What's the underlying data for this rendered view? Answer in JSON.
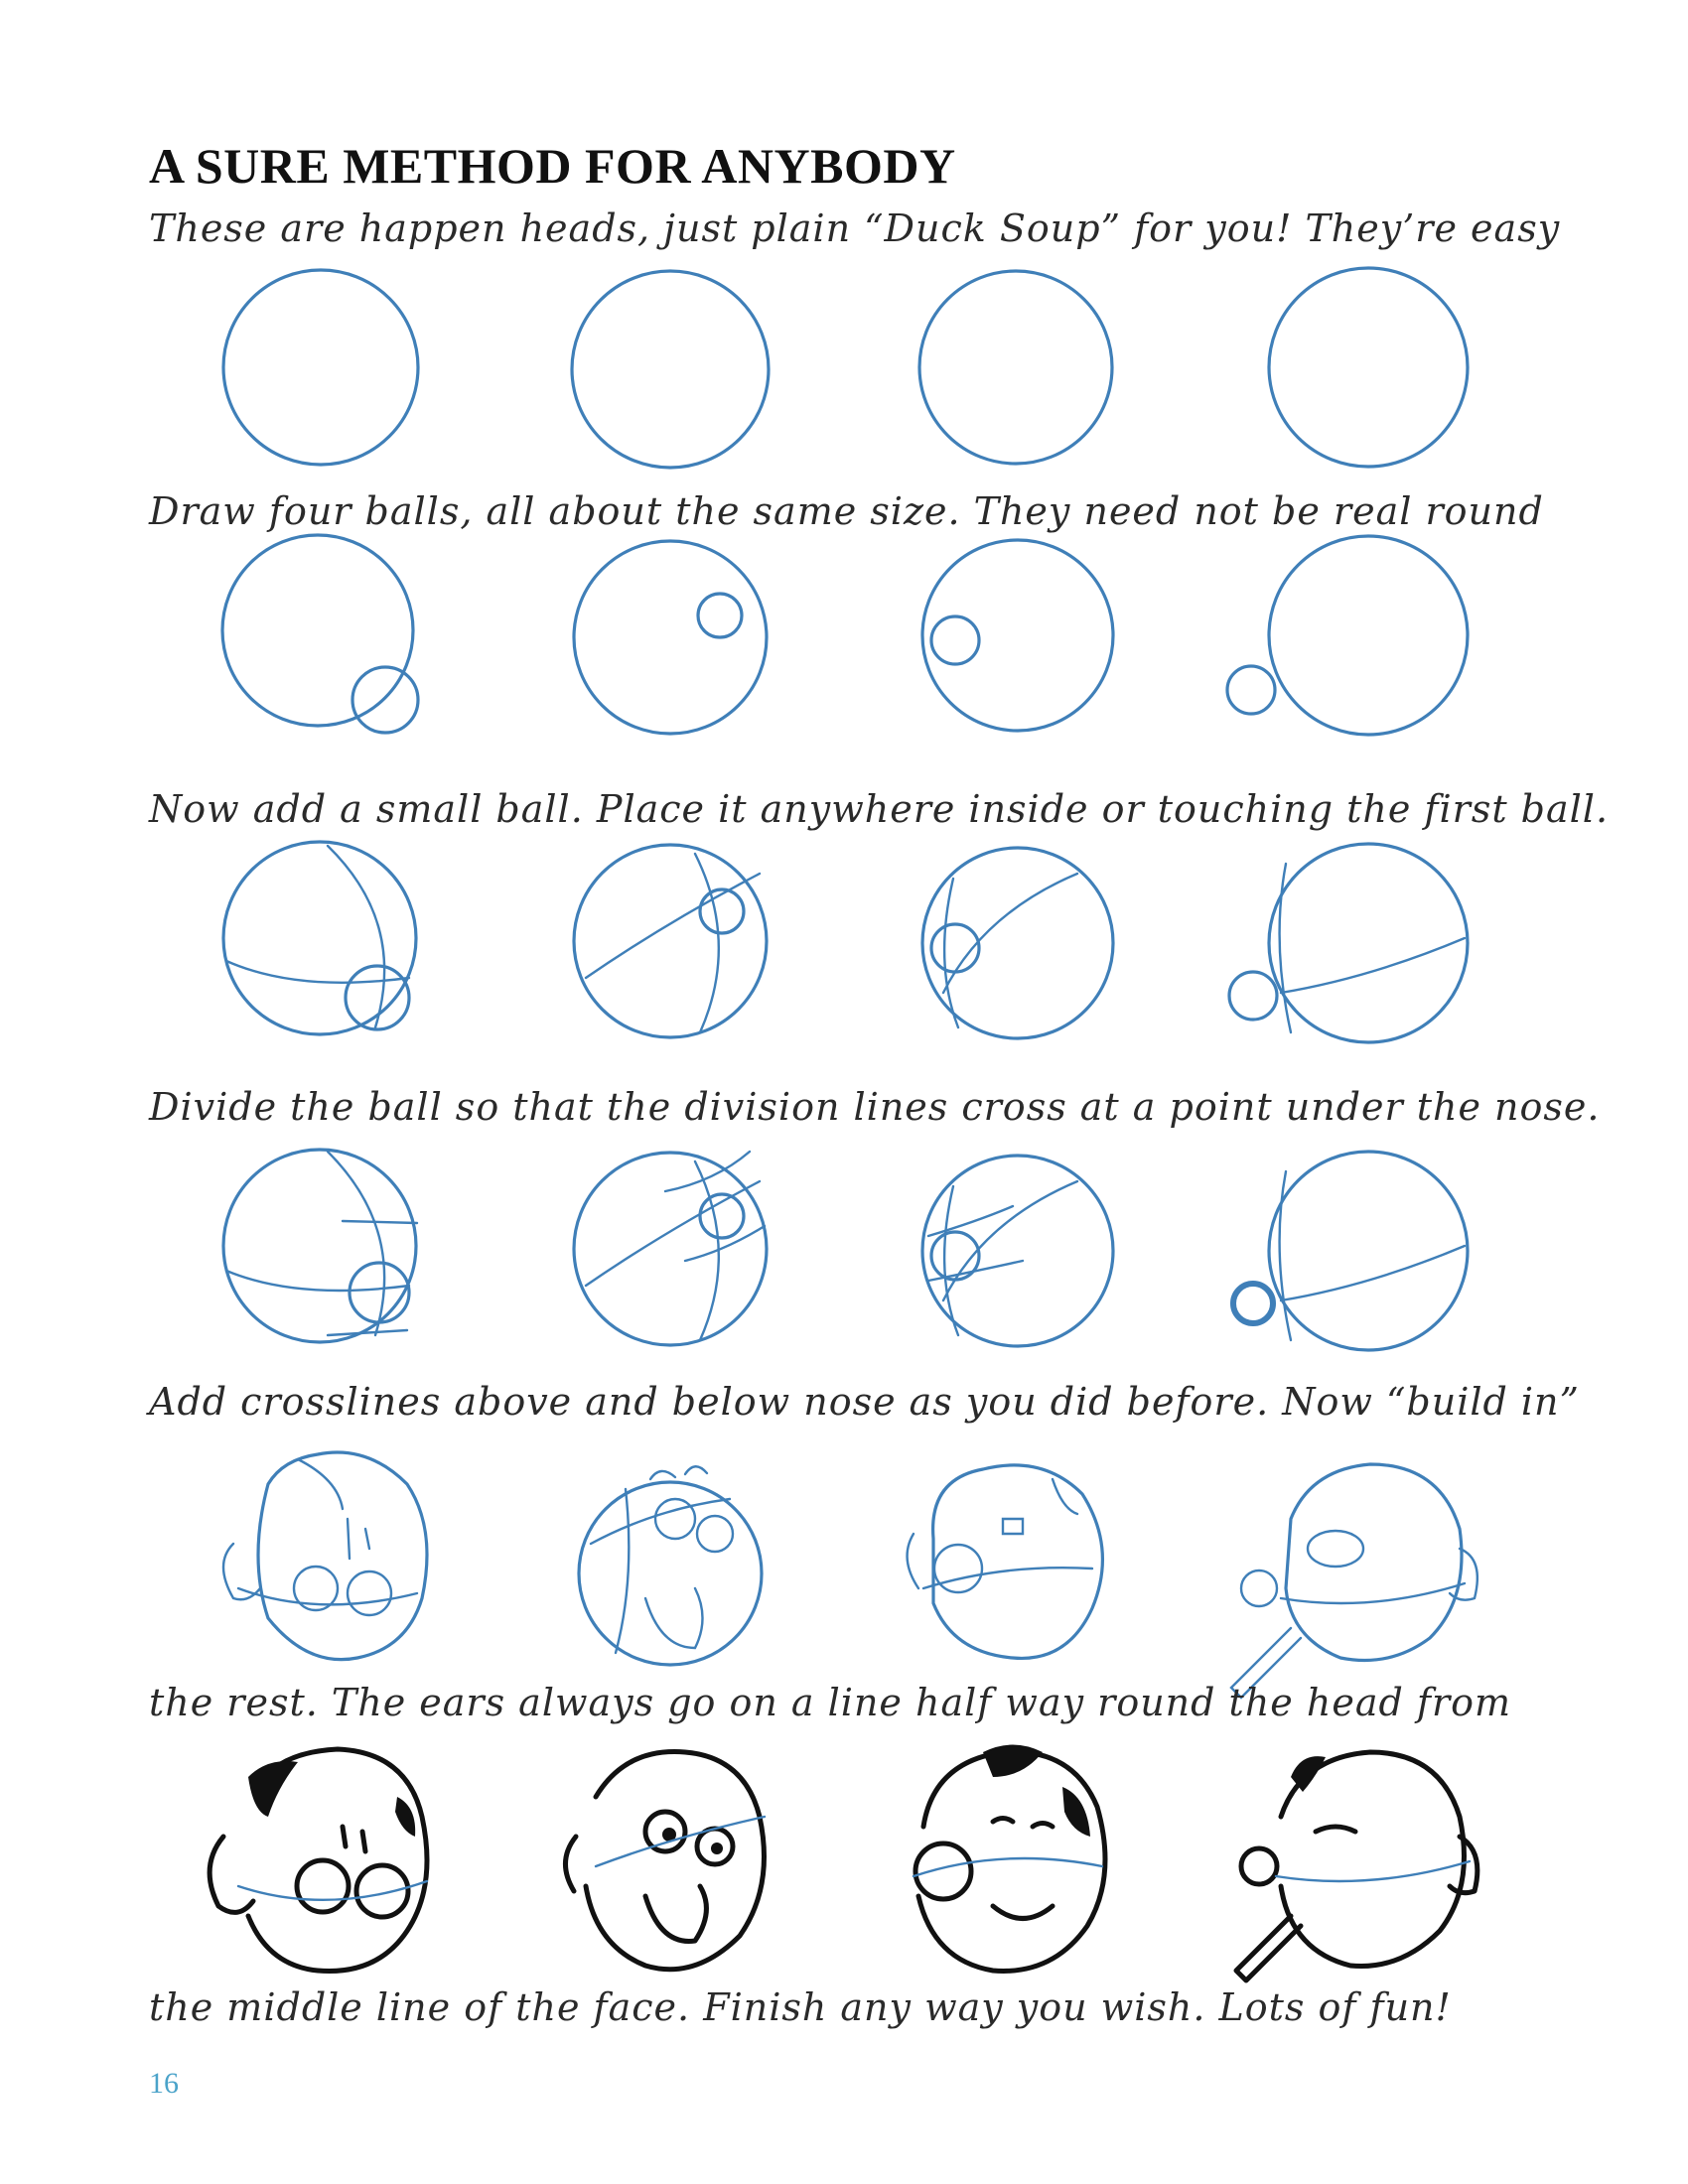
{
  "page": {
    "title": "A SURE METHOD FOR ANYBODY",
    "page_number": "16"
  },
  "captions": [
    "These are happen heads, just plain “Duck Soup” for you!  They’re easy",
    "Draw four balls, all about the same size. They need not be real round",
    "Now add a small ball. Place it anywhere inside or touching the first ball.",
    "Divide the ball so that the division lines cross at a point under the nose.",
    "Add crosslines above and below nose as you did before. Now “build in”",
    "the rest. The ears always go on a line half way round the head from",
    "the middle line of the face. Finish any way you wish. Lots of fun!"
  ],
  "illustration": {
    "stroke_color": "#3f7fb8",
    "ink_color": "#111111",
    "steps": [
      {
        "name": "four-balls",
        "count": 4
      },
      {
        "name": "small-ball",
        "count": 4
      },
      {
        "name": "division-lines",
        "count": 4
      },
      {
        "name": "crosslines",
        "count": 4
      },
      {
        "name": "build-in",
        "count": 4
      },
      {
        "name": "finished-heads",
        "count": 4
      }
    ]
  }
}
